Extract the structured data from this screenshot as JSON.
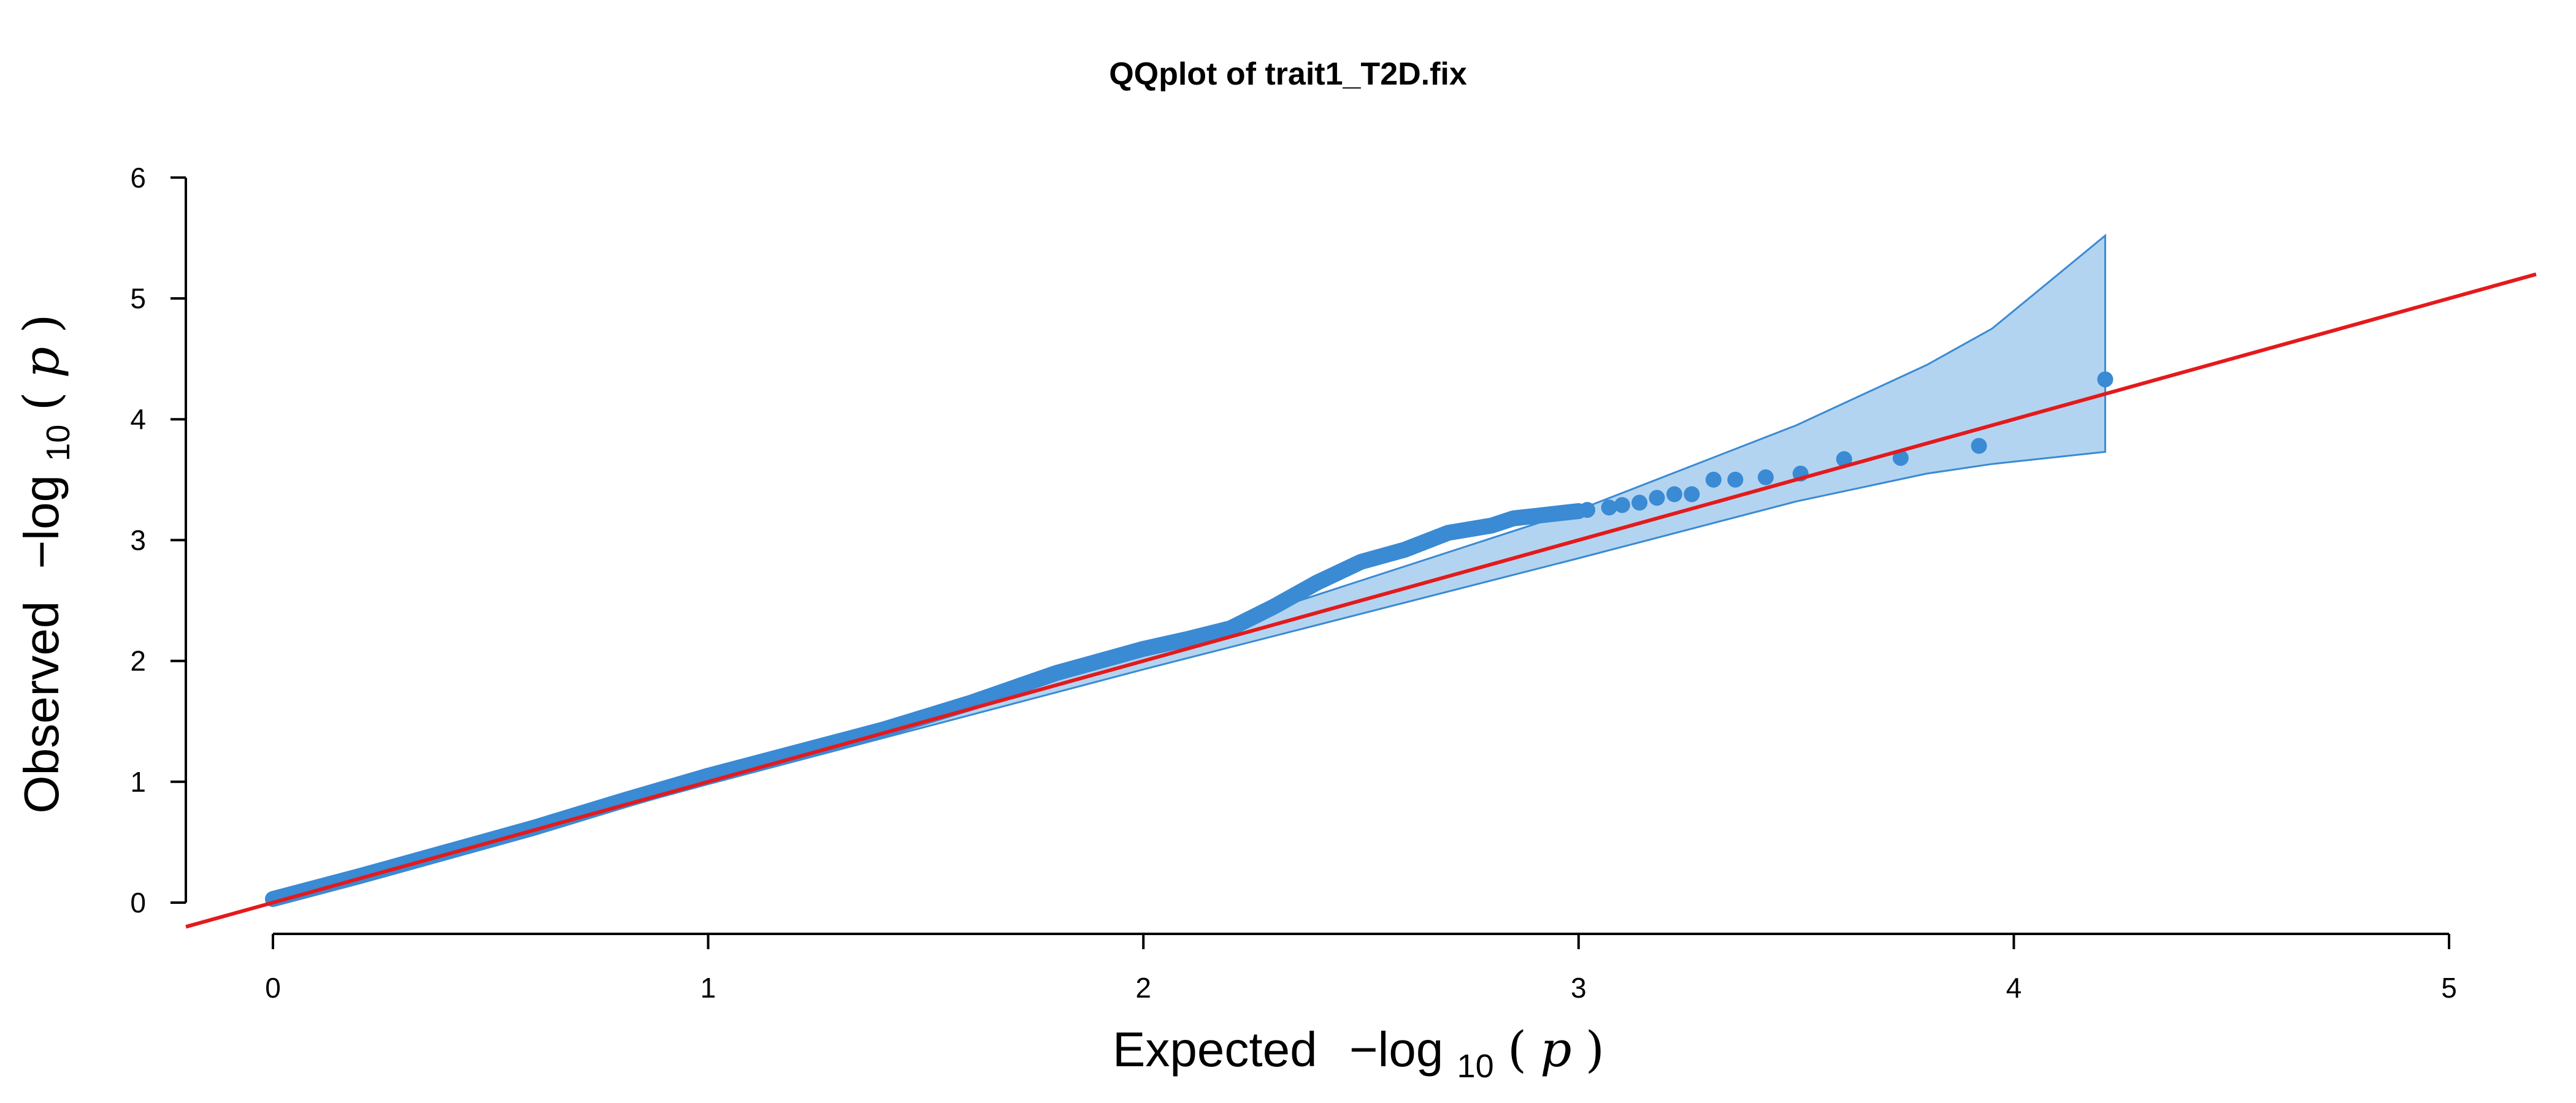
{
  "chart_data": {
    "type": "scatter",
    "title": "QQplot of trait1_T2D.fix",
    "xlabel": {
      "word": "Expected",
      "minus_log": "−log",
      "base": "10",
      "open": "(",
      "var": "p",
      "close": ")"
    },
    "ylabel": {
      "word": "Observed",
      "minus_log": "−log",
      "base": "10",
      "open": "(",
      "var": "p",
      "close": ")"
    },
    "xlim": [
      0,
      5
    ],
    "ylim": [
      0,
      6
    ],
    "x_ticks": [
      "0",
      "1",
      "2",
      "3",
      "4",
      "5"
    ],
    "y_ticks": [
      "0",
      "1",
      "2",
      "3",
      "4",
      "5",
      "6"
    ],
    "grid": false,
    "reference_line": {
      "slope": 1,
      "intercept": 0,
      "color": "#e31a1c"
    },
    "confidence_band": {
      "color": "#b3d4f0",
      "edge_color": "#3a8ad4",
      "x": [
        0,
        1.0,
        2.0,
        3.0,
        3.5,
        3.8,
        3.95,
        4.21
      ],
      "upper": [
        0,
        1.0,
        2.08,
        3.25,
        3.95,
        4.45,
        4.75,
        5.52
      ],
      "lower": [
        0,
        0.98,
        1.93,
        2.85,
        3.32,
        3.55,
        3.63,
        3.73
      ]
    },
    "series": [
      {
        "color": "#3a8ad4",
        "curve_points": [
          [
            0.0,
            0.03
          ],
          [
            0.2,
            0.22
          ],
          [
            0.4,
            0.42
          ],
          [
            0.6,
            0.62
          ],
          [
            0.8,
            0.84
          ],
          [
            1.0,
            1.05
          ],
          [
            1.2,
            1.24
          ],
          [
            1.4,
            1.43
          ],
          [
            1.6,
            1.65
          ],
          [
            1.8,
            1.9
          ],
          [
            2.0,
            2.1
          ],
          [
            2.1,
            2.18
          ],
          [
            2.2,
            2.27
          ],
          [
            2.3,
            2.45
          ],
          [
            2.4,
            2.65
          ],
          [
            2.5,
            2.82
          ],
          [
            2.6,
            2.92
          ],
          [
            2.7,
            3.06
          ],
          [
            2.8,
            3.12
          ],
          [
            2.85,
            3.18
          ],
          [
            2.9,
            3.2
          ],
          [
            2.95,
            3.22
          ],
          [
            3.0,
            3.24
          ]
        ],
        "points": [
          [
            3.02,
            3.25
          ],
          [
            3.07,
            3.27
          ],
          [
            3.1,
            3.29
          ],
          [
            3.14,
            3.31
          ],
          [
            3.18,
            3.35
          ],
          [
            3.22,
            3.38
          ],
          [
            3.26,
            3.38
          ],
          [
            3.31,
            3.5
          ],
          [
            3.36,
            3.5
          ],
          [
            3.43,
            3.52
          ],
          [
            3.51,
            3.55
          ],
          [
            3.61,
            3.67
          ],
          [
            3.74,
            3.68
          ],
          [
            3.92,
            3.78
          ],
          [
            4.21,
            4.33
          ]
        ]
      }
    ]
  }
}
